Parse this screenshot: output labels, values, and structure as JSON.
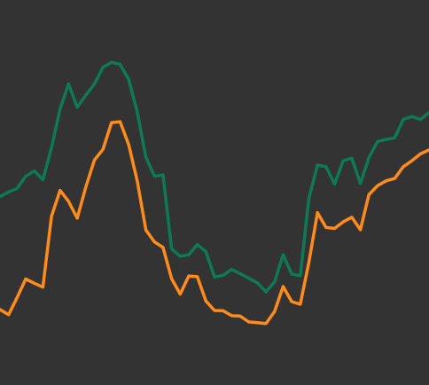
{
  "chart_data": {
    "type": "line",
    "background": "#333333",
    "grid": false,
    "axes_visible": false,
    "legend": "none",
    "title": "",
    "xlabel": "",
    "ylabel": "",
    "xlim": [
      0,
      100
    ],
    "ylim": [
      0,
      100
    ],
    "x": [
      0,
      2,
      4,
      6,
      8,
      10,
      12,
      14,
      16,
      18,
      20,
      22,
      24,
      26,
      28,
      30,
      32,
      34,
      36,
      38,
      40,
      42,
      44,
      46,
      48,
      50,
      52,
      54,
      56,
      58,
      60,
      62,
      64,
      66,
      68,
      70,
      72,
      74,
      76,
      78,
      80,
      82,
      84,
      86,
      88,
      90,
      92,
      94,
      96,
      98,
      100
    ],
    "series": [
      {
        "color": "#0e7a55",
        "values": [
          49.3,
          50.7,
          51.8,
          55.5,
          57.1,
          54.4,
          64.2,
          76.0,
          83.6,
          76.5,
          80.2,
          83.6,
          88.7,
          90.2,
          89.6,
          85.0,
          75.0,
          61.3,
          55.5,
          55.9,
          33.4,
          31.1,
          31.6,
          34.7,
          32.5,
          24.8,
          25.3,
          27.1,
          25.8,
          24.4,
          23.0,
          20.3,
          23.3,
          31.6,
          25.7,
          25.2,
          48.8,
          58.9,
          58.4,
          53.1,
          60.2,
          61.0,
          53.3,
          61.1,
          66.1,
          66.7,
          67.2,
          72.8,
          73.7,
          72.8,
          74.9
        ]
      },
      {
        "color": "#ff8c1a",
        "values": [
          14.9,
          13.3,
          18.6,
          24.2,
          22.9,
          21.7,
          43.3,
          51.2,
          47.8,
          42.7,
          52.2,
          60.4,
          63.7,
          71.8,
          72.1,
          65.1,
          54.0,
          39.1,
          35.5,
          33.8,
          24.3,
          19.6,
          25.1,
          24.9,
          17.5,
          14.6,
          14.5,
          13.0,
          12.9,
          11.1,
          10.9,
          10.6,
          14.3,
          21.9,
          17.3,
          16.5,
          29.3,
          44.4,
          39.9,
          39.6,
          41.6,
          43.0,
          39.2,
          49.9,
          52.6,
          54.1,
          54.8,
          58.4,
          60.2,
          62.3,
          63.5
        ]
      }
    ]
  }
}
